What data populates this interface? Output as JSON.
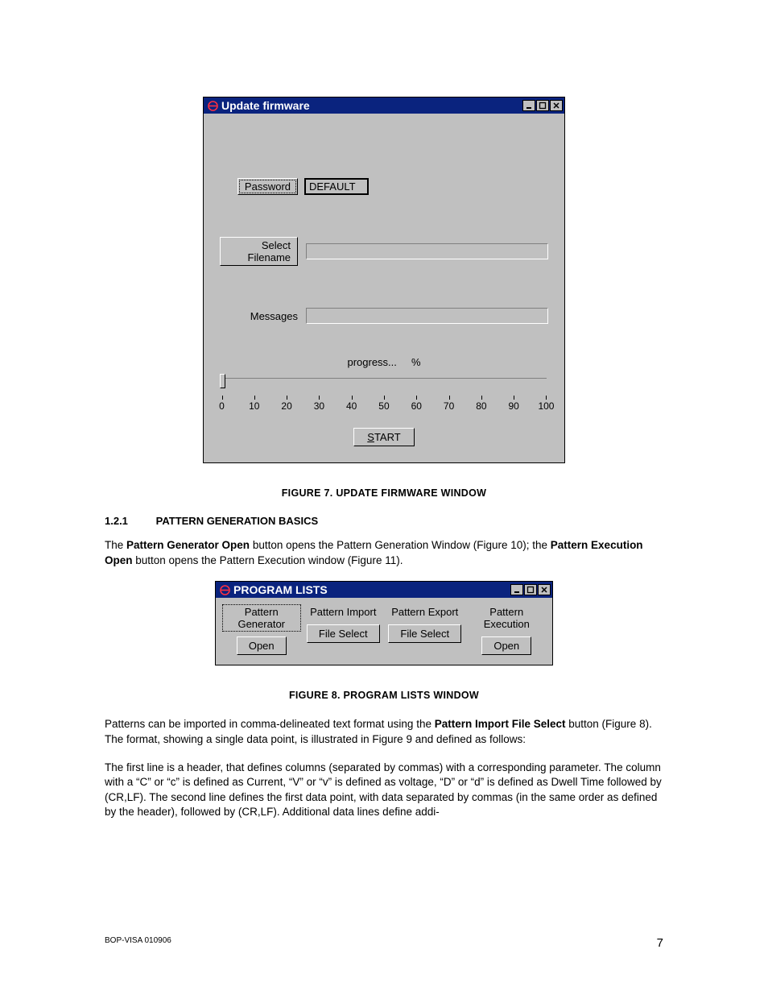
{
  "update_firmware": {
    "title": "Update firmware",
    "password_btn": "Password",
    "password_value": "DEFAULT",
    "select_filename_btn": "Select Filename",
    "filename_value": "",
    "messages_label": "Messages",
    "messages_value": "",
    "progress_label": "progress...",
    "progress_unit": "%",
    "slider_ticks": [
      "0",
      "10",
      "20",
      "30",
      "40",
      "50",
      "60",
      "70",
      "80",
      "90",
      "100"
    ],
    "slider_value": 0,
    "start_prefix": "S",
    "start_rest": "TART"
  },
  "figure7_caption": "FIGURE 7.    UPDATE FIRMWARE WINDOW",
  "section": {
    "number": "1.2.1",
    "title": "PATTERN GENERATION BASICS"
  },
  "para1": {
    "t1": "The ",
    "b1": "Pattern Generator Open",
    "t2": " button opens the Pattern Generation Window (Figure 10); the ",
    "b2": "Pattern Execution Open",
    "t3": " button opens the Pattern Execution window (Figure 11)."
  },
  "program_lists": {
    "title": "PROGRAM LISTS",
    "cols": [
      {
        "label": "Pattern Generator",
        "btn": "Open"
      },
      {
        "label": "Pattern Import",
        "btn": "File Select"
      },
      {
        "label": "Pattern Export",
        "btn": "File Select"
      },
      {
        "label": "Pattern Execution",
        "btn": "Open"
      }
    ]
  },
  "figure8_caption": "FIGURE 8.    PROGRAM LISTS WINDOW",
  "para2": {
    "t1": "Patterns can be imported in comma-delineated text format using the ",
    "b1": "Pattern Import File Select",
    "t2": " button (Figure 8). The format, showing a single data point, is illustrated in Figure 9 and defined as follows:"
  },
  "para3": "The first line is a header, that defines columns (separated by commas) with a corresponding parameter. The column with a “C” or “c” is defined as Current, “V” or “v” is defined as voltage, “D” or “d” is defined as Dwell Time followed by (CR,LF). The second line defines the first data point, with data separated by commas (in the same order as defined by the header), followed by (CR,LF). Additional data lines define addi-",
  "footer_left": "BOP-VISA 010906",
  "footer_page": "7",
  "colors": {
    "win_bg": "#c0c0c0",
    "titlebar_bg": "#0a237e",
    "titlebar_fg": "#ffffff"
  }
}
